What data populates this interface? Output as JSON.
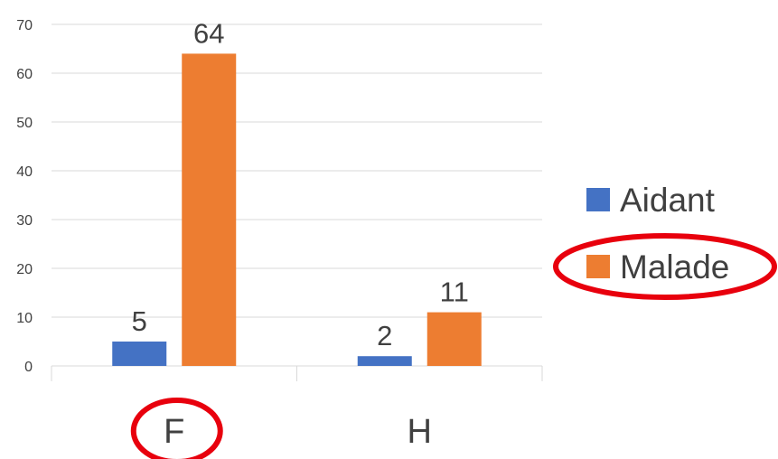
{
  "chart_data": {
    "type": "bar",
    "categories": [
      "F",
      "H"
    ],
    "series": [
      {
        "name": "Aidant",
        "values": [
          5,
          2
        ]
      },
      {
        "name": "Malade",
        "values": [
          64,
          11
        ]
      }
    ],
    "ylim": [
      0,
      70
    ],
    "yticks": [
      0,
      10,
      20,
      30,
      40,
      50,
      60,
      70
    ],
    "grid": true,
    "legend_position": "right",
    "colors": {
      "Aidant": "#4472C4",
      "Malade": "#ED7D31",
      "grid": "#D9D9D9",
      "annotation": "#E8000D"
    },
    "annotations": [
      "circle around category F",
      "circle around legend entry Malade"
    ]
  }
}
